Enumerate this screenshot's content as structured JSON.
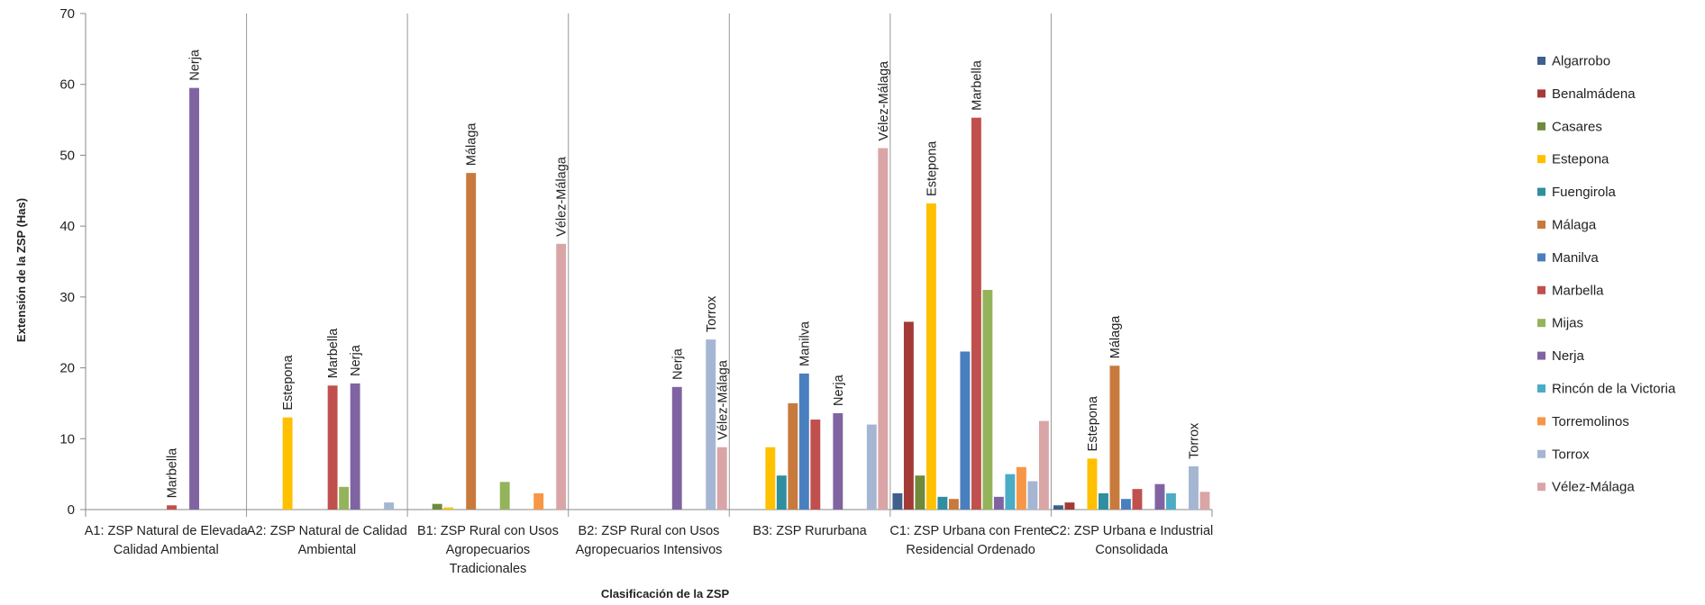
{
  "chart_data": {
    "type": "bar",
    "title": "",
    "xlabel": "Clasificación  de la ZSP",
    "ylabel": "Extensión de la ZSP (Has)",
    "ylim": [
      0,
      70
    ],
    "yticks": [
      0,
      10,
      20,
      30,
      40,
      50,
      60,
      70
    ],
    "grid": false,
    "legend_position": "right",
    "categories": [
      [
        "A1: ZSP Natural de Elevada",
        "Calidad Ambiental"
      ],
      [
        "A2: ZSP Natural de Calidad",
        "Ambiental"
      ],
      [
        "B1: ZSP Rural con Usos",
        "Agropecuarios",
        "Tradicionales"
      ],
      [
        "B2: ZSP Rural con Usos",
        "Agropecuarios Intensivos"
      ],
      [
        "B3: ZSP Rururbana"
      ],
      [
        "C1: ZSP Urbana con Frente",
        "Residencial Ordenado"
      ],
      [
        "C2: ZSP Urbana e Industrial",
        "Consolidada"
      ]
    ],
    "series": [
      {
        "name": "Algarrobo",
        "color": "#3f5f8c",
        "values": [
          0,
          0,
          0,
          0,
          0,
          2.3,
          0.6
        ]
      },
      {
        "name": "Benalmádena",
        "color": "#a33a38",
        "values": [
          0,
          0,
          0,
          0,
          0,
          26.5,
          1.0
        ]
      },
      {
        "name": "Casares",
        "color": "#6f8a3a",
        "values": [
          0,
          0,
          0.8,
          0,
          0,
          4.8,
          0
        ]
      },
      {
        "name": "Estepona",
        "color": "#ffc000",
        "values": [
          0,
          13.0,
          0.3,
          0,
          8.8,
          43.2,
          7.2
        ]
      },
      {
        "name": "Fuengirola",
        "color": "#2f8ea0",
        "values": [
          0,
          0,
          0,
          0,
          4.8,
          1.8,
          2.3
        ]
      },
      {
        "name": "Málaga",
        "color": "#c87a3c",
        "values": [
          0,
          0,
          47.5,
          0,
          15.0,
          1.5,
          20.3
        ]
      },
      {
        "name": "Manilva",
        "color": "#4a7fbf",
        "values": [
          0,
          0,
          0,
          0,
          19.2,
          22.3,
          1.5
        ]
      },
      {
        "name": "Marbella",
        "color": "#c0504d",
        "values": [
          0.6,
          17.5,
          0,
          0,
          12.7,
          55.3,
          2.9
        ]
      },
      {
        "name": "Mijas",
        "color": "#93b45a",
        "values": [
          0,
          3.2,
          3.9,
          0,
          0,
          31.0,
          0
        ]
      },
      {
        "name": "Nerja",
        "color": "#8064a2",
        "values": [
          59.5,
          17.8,
          0,
          17.3,
          13.6,
          1.8,
          3.6
        ]
      },
      {
        "name": "Rincón de la Victoria",
        "color": "#4bacc6",
        "values": [
          0,
          0,
          0,
          0,
          0,
          5.0,
          2.3
        ]
      },
      {
        "name": "Torremolinos",
        "color": "#f79646",
        "values": [
          0,
          0,
          2.3,
          0,
          0,
          6.0,
          0
        ]
      },
      {
        "name": "Torrox",
        "color": "#a5b6d3",
        "values": [
          0,
          1.0,
          0,
          24.0,
          12.0,
          4.0,
          6.1
        ]
      },
      {
        "name": "Vélez-Málaga",
        "color": "#d9a5a6",
        "values": [
          0,
          0,
          37.5,
          8.8,
          51.0,
          12.5,
          2.5
        ]
      }
    ],
    "data_labels": [
      {
        "category": 0,
        "series": "Marbella",
        "text": "Marbella"
      },
      {
        "category": 0,
        "series": "Nerja",
        "text": "Nerja"
      },
      {
        "category": 1,
        "series": "Estepona",
        "text": "Estepona"
      },
      {
        "category": 1,
        "series": "Marbella",
        "text": "Marbella"
      },
      {
        "category": 1,
        "series": "Nerja",
        "text": "Nerja"
      },
      {
        "category": 2,
        "series": "Málaga",
        "text": "Málaga"
      },
      {
        "category": 2,
        "series": "Vélez-Málaga",
        "text": "Vélez-Málaga"
      },
      {
        "category": 3,
        "series": "Nerja",
        "text": "Nerja"
      },
      {
        "category": 3,
        "series": "Torrox",
        "text": "Torrox"
      },
      {
        "category": 3,
        "series": "Vélez-Málaga",
        "text": "Vélez-Málaga"
      },
      {
        "category": 4,
        "series": "Manilva",
        "text": "Manilva"
      },
      {
        "category": 4,
        "series": "Nerja",
        "text": "Nerja"
      },
      {
        "category": 4,
        "series": "Vélez-Málaga",
        "text": "Vélez-Málaga"
      },
      {
        "category": 5,
        "series": "Estepona",
        "text": "Estepona"
      },
      {
        "category": 5,
        "series": "Marbella",
        "text": "Marbella"
      },
      {
        "category": 6,
        "series": "Estepona",
        "text": "Estepona"
      },
      {
        "category": 6,
        "series": "Málaga",
        "text": "Málaga"
      },
      {
        "category": 6,
        "series": "Torrox",
        "text": "Torrox"
      }
    ]
  }
}
